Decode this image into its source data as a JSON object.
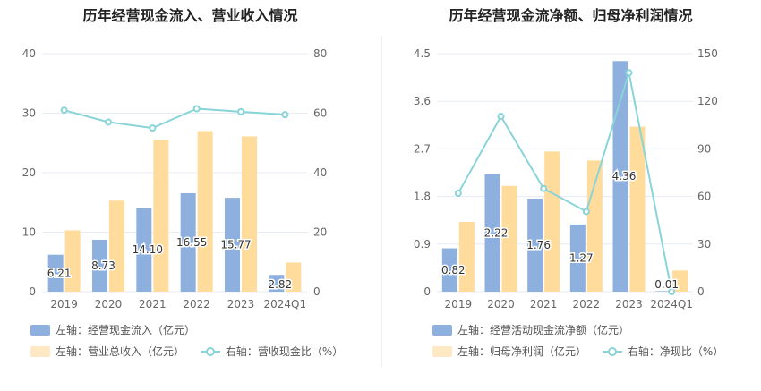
{
  "colors": {
    "bar1": "#8eb0de",
    "bar2": "#ffdb9c",
    "line": "#88d4d8",
    "grid": "#e7ebf2",
    "axis_text": "#666666"
  },
  "chart_data": [
    {
      "type": "bar",
      "title": "历年经营现金流入、营业收入情况",
      "categories": [
        "2019",
        "2020",
        "2021",
        "2022",
        "2023",
        "2024Q1"
      ],
      "left_axis": {
        "ylim": [
          0,
          40
        ],
        "ticks": [
          "0",
          "10",
          "20",
          "30",
          "40"
        ]
      },
      "right_axis": {
        "ylim": [
          0,
          80
        ],
        "ticks": [
          "0",
          "20",
          "40",
          "60",
          "80"
        ]
      },
      "series": [
        {
          "name": "左轴：经营现金流入（亿元）",
          "axis": "left",
          "kind": "bar",
          "values": [
            6.21,
            8.73,
            14.1,
            16.55,
            15.77,
            2.82
          ],
          "labels": [
            "6.21",
            "8.73",
            "14.10",
            "16.55",
            "15.77",
            "2.82"
          ]
        },
        {
          "name": "左轴：营业总收入（亿元）",
          "axis": "left",
          "kind": "bar",
          "values": [
            10.3,
            15.3,
            25.5,
            27.0,
            26.1,
            4.9
          ]
        },
        {
          "name": "右轴：营收现金比（%）",
          "axis": "right",
          "kind": "line",
          "values": [
            61.0,
            57.0,
            55.0,
            61.5,
            60.5,
            59.5
          ]
        }
      ]
    },
    {
      "type": "bar",
      "title": "历年经营现金流净额、归母净利润情况",
      "categories": [
        "2019",
        "2020",
        "2021",
        "2022",
        "2023",
        "2024Q1"
      ],
      "left_axis": {
        "ylim": [
          0,
          4.5
        ],
        "ticks": [
          "0",
          "0.9",
          "1.8",
          "2.7",
          "3.6",
          "4.5"
        ]
      },
      "right_axis": {
        "ylim": [
          0,
          150
        ],
        "ticks": [
          "0",
          "30",
          "60",
          "90",
          "120",
          "150"
        ]
      },
      "series": [
        {
          "name": "左轴：经营活动现金流净额（亿元）",
          "axis": "left",
          "kind": "bar",
          "values": [
            0.82,
            2.22,
            1.76,
            1.27,
            4.36,
            0.01
          ],
          "labels": [
            "0.82",
            "2.22",
            "1.76",
            "1.27",
            "4.36",
            "0.01"
          ]
        },
        {
          "name": "左轴：归母净利润（亿元）",
          "axis": "left",
          "kind": "bar",
          "values": [
            1.32,
            2.0,
            2.65,
            2.48,
            3.12,
            0.4
          ]
        },
        {
          "name": "右轴：净现比（%）",
          "axis": "right",
          "kind": "line",
          "values": [
            62.0,
            110.5,
            65.0,
            50.5,
            138.0,
            0.0
          ]
        }
      ]
    }
  ]
}
